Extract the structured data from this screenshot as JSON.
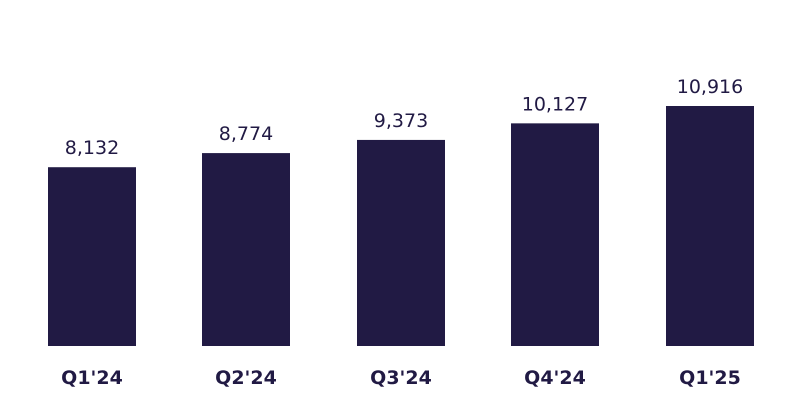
{
  "chart_data": {
    "type": "bar",
    "categories": [
      "Q1'24",
      "Q2'24",
      "Q3'24",
      "Q4'24",
      "Q1'25"
    ],
    "values": [
      8132,
      8774,
      9373,
      10127,
      10916
    ],
    "data_labels": [
      "8,132",
      "8,774",
      "9,373",
      "10,127",
      "10,916"
    ],
    "title": "",
    "xlabel": "",
    "ylabel": "",
    "ylim": [
      0,
      10916
    ],
    "grid": false,
    "legend": "none",
    "bar_color": "#211a44"
  }
}
